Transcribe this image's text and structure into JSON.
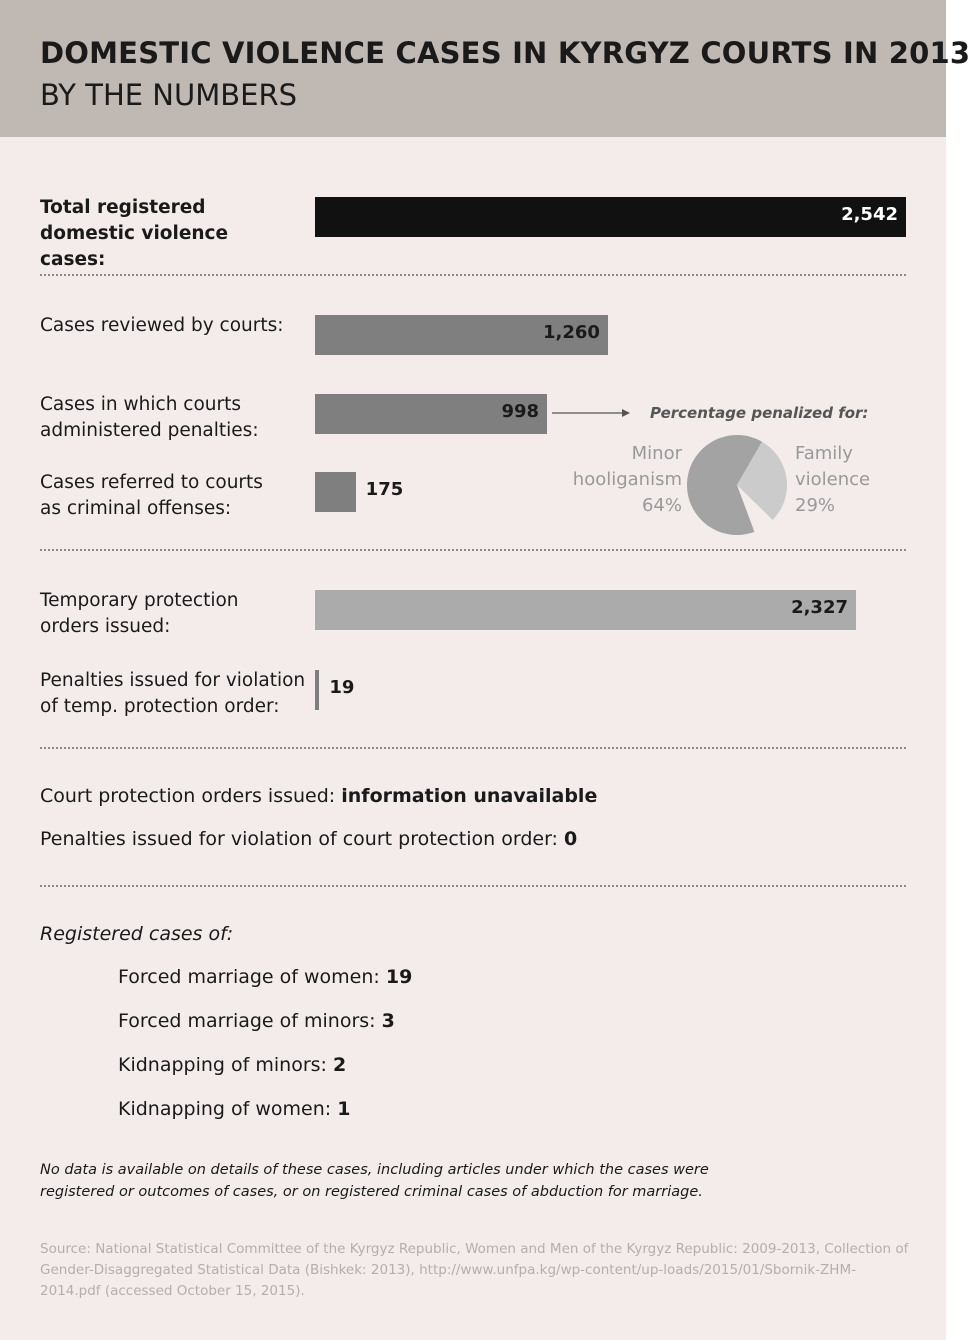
{
  "header": {
    "title": "DOMESTIC VIOLENCE CASES IN KYRGYZ COURTS IN 2013",
    "subtitle": "BY THE NUMBERS"
  },
  "chart_data": [
    {
      "type": "bar",
      "categories": [
        "Total registered domestic violence cases:",
        "Cases reviewed by courts:",
        "Cases in which courts administered penalties:",
        "Cases referred to courts as criminal offenses:",
        "Temporary protection orders issued:",
        "Penalties issued for violation of temp. protection order:"
      ],
      "values": [
        2542,
        1260,
        998,
        175,
        2327,
        19
      ],
      "value_labels": [
        "2,542",
        "1,260",
        "998",
        "175",
        "2,327",
        "19"
      ],
      "colors": [
        "#111111",
        "#7f7f7f",
        "#7f7f7f",
        "#7f7f7f",
        "#ababab",
        "#7f7f7f"
      ],
      "xlim": [
        0,
        2542
      ]
    },
    {
      "type": "pie",
      "title": "Percentage penalized for:",
      "categories": [
        "Minor hooliganism",
        "Family violence"
      ],
      "values": [
        64,
        29
      ],
      "value_labels": [
        "64%",
        "29%"
      ],
      "colors": [
        "#a3a3a3",
        "#cbcbcb"
      ]
    }
  ],
  "court_orders": [
    {
      "label": "Court protection orders issued:",
      "value": "information unavailable"
    },
    {
      "label": "Penalties issued for violation of court protection order:",
      "value": 0
    }
  ],
  "registered": {
    "title": "Registered cases of:",
    "items": [
      {
        "label": "Forced marriage of women:",
        "value": 19
      },
      {
        "label": "Forced marriage of minors:",
        "value": 3
      },
      {
        "label": "Kidnapping of minors:",
        "value": 2
      },
      {
        "label": "Kidnapping of women:",
        "value": 1
      }
    ]
  },
  "note": "No data is available on details of these cases, including articles under which the cases were registered or outcomes of cases, or on registered criminal cases of abduction for marriage.",
  "source": "Source: National Statistical Committee of the Kyrgyz Republic, Women and Men of the Kyrgyz Republic: 2009-2013, Collection of Gender-Disaggregated Statistical Data (Bishkek: 2013), http://www.unfpa.kg/wp-content/up-loads/2015/01/Sbornik-ZHM-2014.pdf (accessed October 15, 2015)."
}
